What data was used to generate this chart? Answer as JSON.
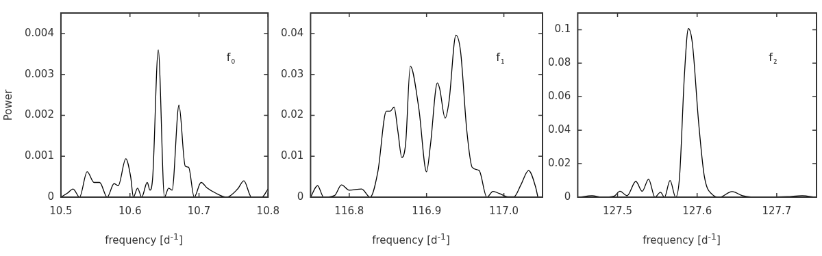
{
  "chart_data": [
    {
      "type": "line",
      "xlabel": "frequency [d$^{-1}$]",
      "ylabel": "Power",
      "annotations": [
        "f₀"
      ],
      "xlim": [
        10.5,
        10.8
      ],
      "xticks": [
        10.5,
        10.6,
        10.7,
        10.8
      ],
      "ylim": [
        0,
        0.0045
      ],
      "yticks": [
        0,
        0.001,
        0.002,
        0.003,
        0.004
      ],
      "x": [
        10.5,
        10.5096,
        10.5176,
        10.527,
        10.538,
        10.548,
        10.556,
        10.567,
        10.577,
        10.583,
        10.594,
        10.601,
        10.605,
        10.611,
        10.617,
        10.625,
        10.629,
        10.633,
        10.641,
        10.65,
        10.656,
        10.661,
        10.671,
        10.68,
        10.685,
        10.693,
        10.703,
        10.712,
        10.724,
        10.74,
        10.756,
        10.765,
        10.776,
        10.791,
        10.8
      ],
      "series": [
        {
          "color": "#000000",
          "values": [
            0,
            0.0001,
            0.0002,
            0,
            0.00062,
            0.00036,
            0.00036,
            0,
            0.00033,
            0.00028,
            0.00094,
            0.0005,
            0,
            0.00022,
            0,
            0.00036,
            0.00017,
            0.0005,
            0.0036,
            0,
            0.00022,
            0.00017,
            0.00225,
            0.00076,
            0.00073,
            0,
            0.00036,
            0.00022,
            0.0001,
            0,
            0.0002,
            0.0004,
            0,
            0,
            0.0002
          ]
        }
      ]
    },
    {
      "type": "line",
      "xlabel": "frequency [d$^{-1}$]",
      "annotations": [
        "f₁"
      ],
      "xlim": [
        116.75,
        117.05
      ],
      "xticks": [
        116.8,
        116.9,
        {
          "value": 117,
          "label": "117.0"
        }
      ],
      "ylim": [
        0,
        0.045
      ],
      "yticks": [
        0,
        0.01,
        0.02,
        0.03,
        0.04
      ],
      "x": [
        116.75,
        116.759,
        116.767,
        116.781,
        116.79,
        116.8,
        116.816,
        116.827,
        116.837,
        116.848,
        116.853,
        116.858,
        116.863,
        116.868,
        116.873,
        116.879,
        116.89,
        116.9,
        116.905,
        116.914,
        116.917,
        116.924,
        116.929,
        116.938,
        116.944,
        116.952,
        116.959,
        116.968,
        116.978,
        116.986,
        116.994,
        117.005,
        117.013,
        117.022,
        117.032,
        117.041,
        117.044
      ],
      "series": [
        {
          "color": "#000000",
          "values": [
            0,
            0.0028,
            0,
            0.0004,
            0.003,
            0.0017,
            0.002,
            0,
            0.0062,
            0.021,
            0.021,
            0.022,
            0.016,
            0.0097,
            0.0132,
            0.032,
            0.0217,
            0.0062,
            0.0127,
            0.0279,
            0.0265,
            0.0193,
            0.0233,
            0.0396,
            0.0356,
            0.0164,
            0.0073,
            0.0065,
            0,
            0.0014,
            0.0009,
            0.0001,
            0.0001,
            0.003,
            0.0065,
            0.0025,
            0
          ]
        }
      ]
    },
    {
      "type": "line",
      "xlabel": "frequency [d$^{-1}$]",
      "annotations": [
        "f₂"
      ],
      "xlim": [
        127.45,
        127.75
      ],
      "xticks": [
        127.5,
        127.6,
        127.7
      ],
      "ylim": [
        0,
        0.11
      ],
      "yticks": [
        0,
        0.02,
        0.04,
        0.06,
        0.08,
        0.1
      ],
      "x": [
        127.452,
        127.468,
        127.48,
        127.496,
        127.503,
        127.512,
        127.523,
        127.531,
        127.539,
        127.547,
        127.554,
        127.559,
        127.566,
        127.573,
        127.578,
        127.584,
        127.589,
        127.594,
        127.602,
        127.609,
        127.619,
        127.628,
        127.644,
        127.657,
        127.682,
        127.713,
        127.732,
        127.748
      ],
      "series": [
        {
          "color": "#000000",
          "values": [
            0,
            0.0009,
            0,
            0.0007,
            0.0035,
            0.0009,
            0.0094,
            0.0035,
            0.0107,
            0,
            0.0029,
            0,
            0.01,
            0,
            0.0126,
            0.0726,
            0.1007,
            0.092,
            0.044,
            0.0126,
            0.0016,
            0,
            0.0033,
            0.0009,
            0,
            0.0003,
            0.0009,
            0
          ]
        }
      ]
    }
  ]
}
